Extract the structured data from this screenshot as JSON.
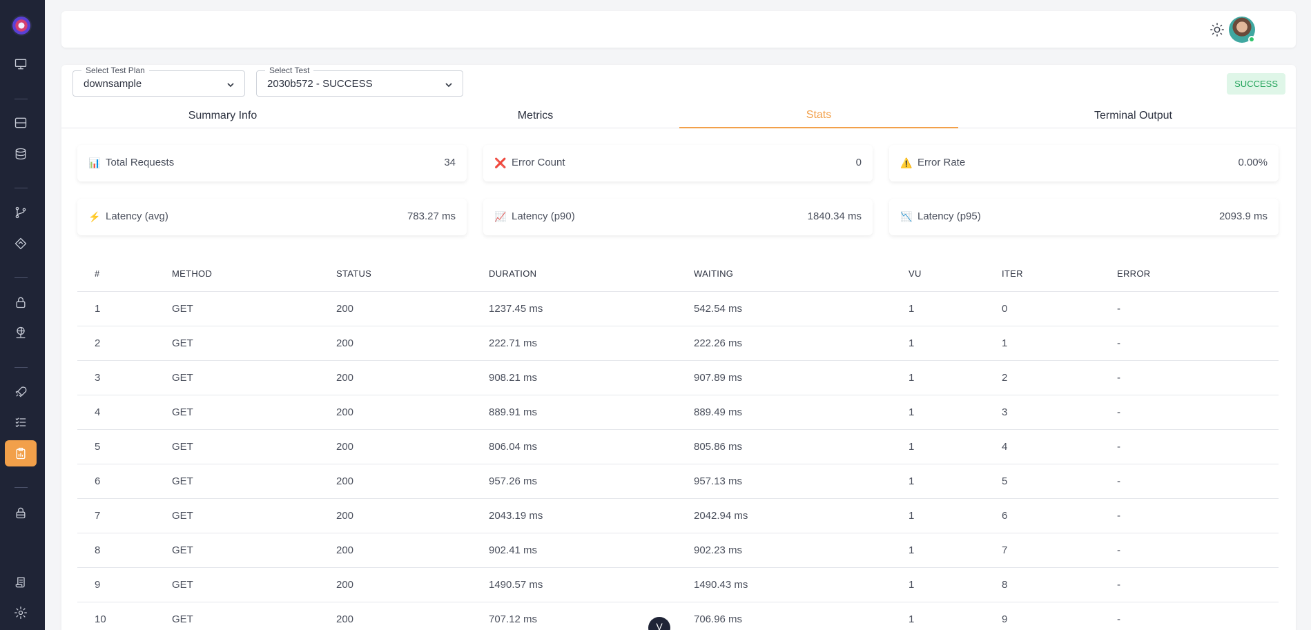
{
  "header": {
    "icons": [
      "sun-icon",
      "avatar"
    ]
  },
  "selects": {
    "test_plan": {
      "label": "Select Test Plan",
      "value": "downsample"
    },
    "test": {
      "label": "Select Test",
      "value": "2030b572 - SUCCESS"
    }
  },
  "status_badge": "SUCCESS",
  "tabs": [
    {
      "label": "Summary Info"
    },
    {
      "label": "Metrics"
    },
    {
      "label": "Stats"
    },
    {
      "label": "Terminal Output"
    }
  ],
  "active_tab": "Stats",
  "stats": [
    {
      "icon": "📊",
      "label": "Total Requests",
      "value": "34"
    },
    {
      "icon": "❌",
      "label": "Error Count",
      "value": "0"
    },
    {
      "icon": "⚠️",
      "label": "Error Rate",
      "value": "0.00%"
    },
    {
      "icon": "⚡",
      "label": "Latency (avg)",
      "value": "783.27 ms"
    },
    {
      "icon": "📈",
      "label": "Latency (p90)",
      "value": "1840.34 ms"
    },
    {
      "icon": "📉",
      "label": "Latency (p95)",
      "value": "2093.9 ms"
    }
  ],
  "table": {
    "columns": [
      "#",
      "METHOD",
      "STATUS",
      "DURATION",
      "WAITING",
      "VU",
      "ITER",
      "ERROR"
    ],
    "rows": [
      [
        "1",
        "GET",
        "200",
        "1237.45 ms",
        "542.54 ms",
        "1",
        "0",
        "-"
      ],
      [
        "2",
        "GET",
        "200",
        "222.71 ms",
        "222.26 ms",
        "1",
        "1",
        "-"
      ],
      [
        "3",
        "GET",
        "200",
        "908.21 ms",
        "907.89 ms",
        "1",
        "2",
        "-"
      ],
      [
        "4",
        "GET",
        "200",
        "889.91 ms",
        "889.49 ms",
        "1",
        "3",
        "-"
      ],
      [
        "5",
        "GET",
        "200",
        "806.04 ms",
        "805.86 ms",
        "1",
        "4",
        "-"
      ],
      [
        "6",
        "GET",
        "200",
        "957.26 ms",
        "957.13 ms",
        "1",
        "5",
        "-"
      ],
      [
        "7",
        "GET",
        "200",
        "2043.19 ms",
        "2042.94 ms",
        "1",
        "6",
        "-"
      ],
      [
        "8",
        "GET",
        "200",
        "902.41 ms",
        "902.23 ms",
        "1",
        "7",
        "-"
      ],
      [
        "9",
        "GET",
        "200",
        "1490.57 ms",
        "1490.43 ms",
        "1",
        "8",
        "-"
      ],
      [
        "10",
        "GET",
        "200",
        "707.12 ms",
        "706.96 ms",
        "1",
        "9",
        "-"
      ]
    ]
  },
  "fab_label": "V",
  "colors": {
    "accent": "#f2a04a",
    "sidebar": "#1f2436",
    "success_bg": "#dff6e8",
    "success_text": "#22a35a"
  }
}
